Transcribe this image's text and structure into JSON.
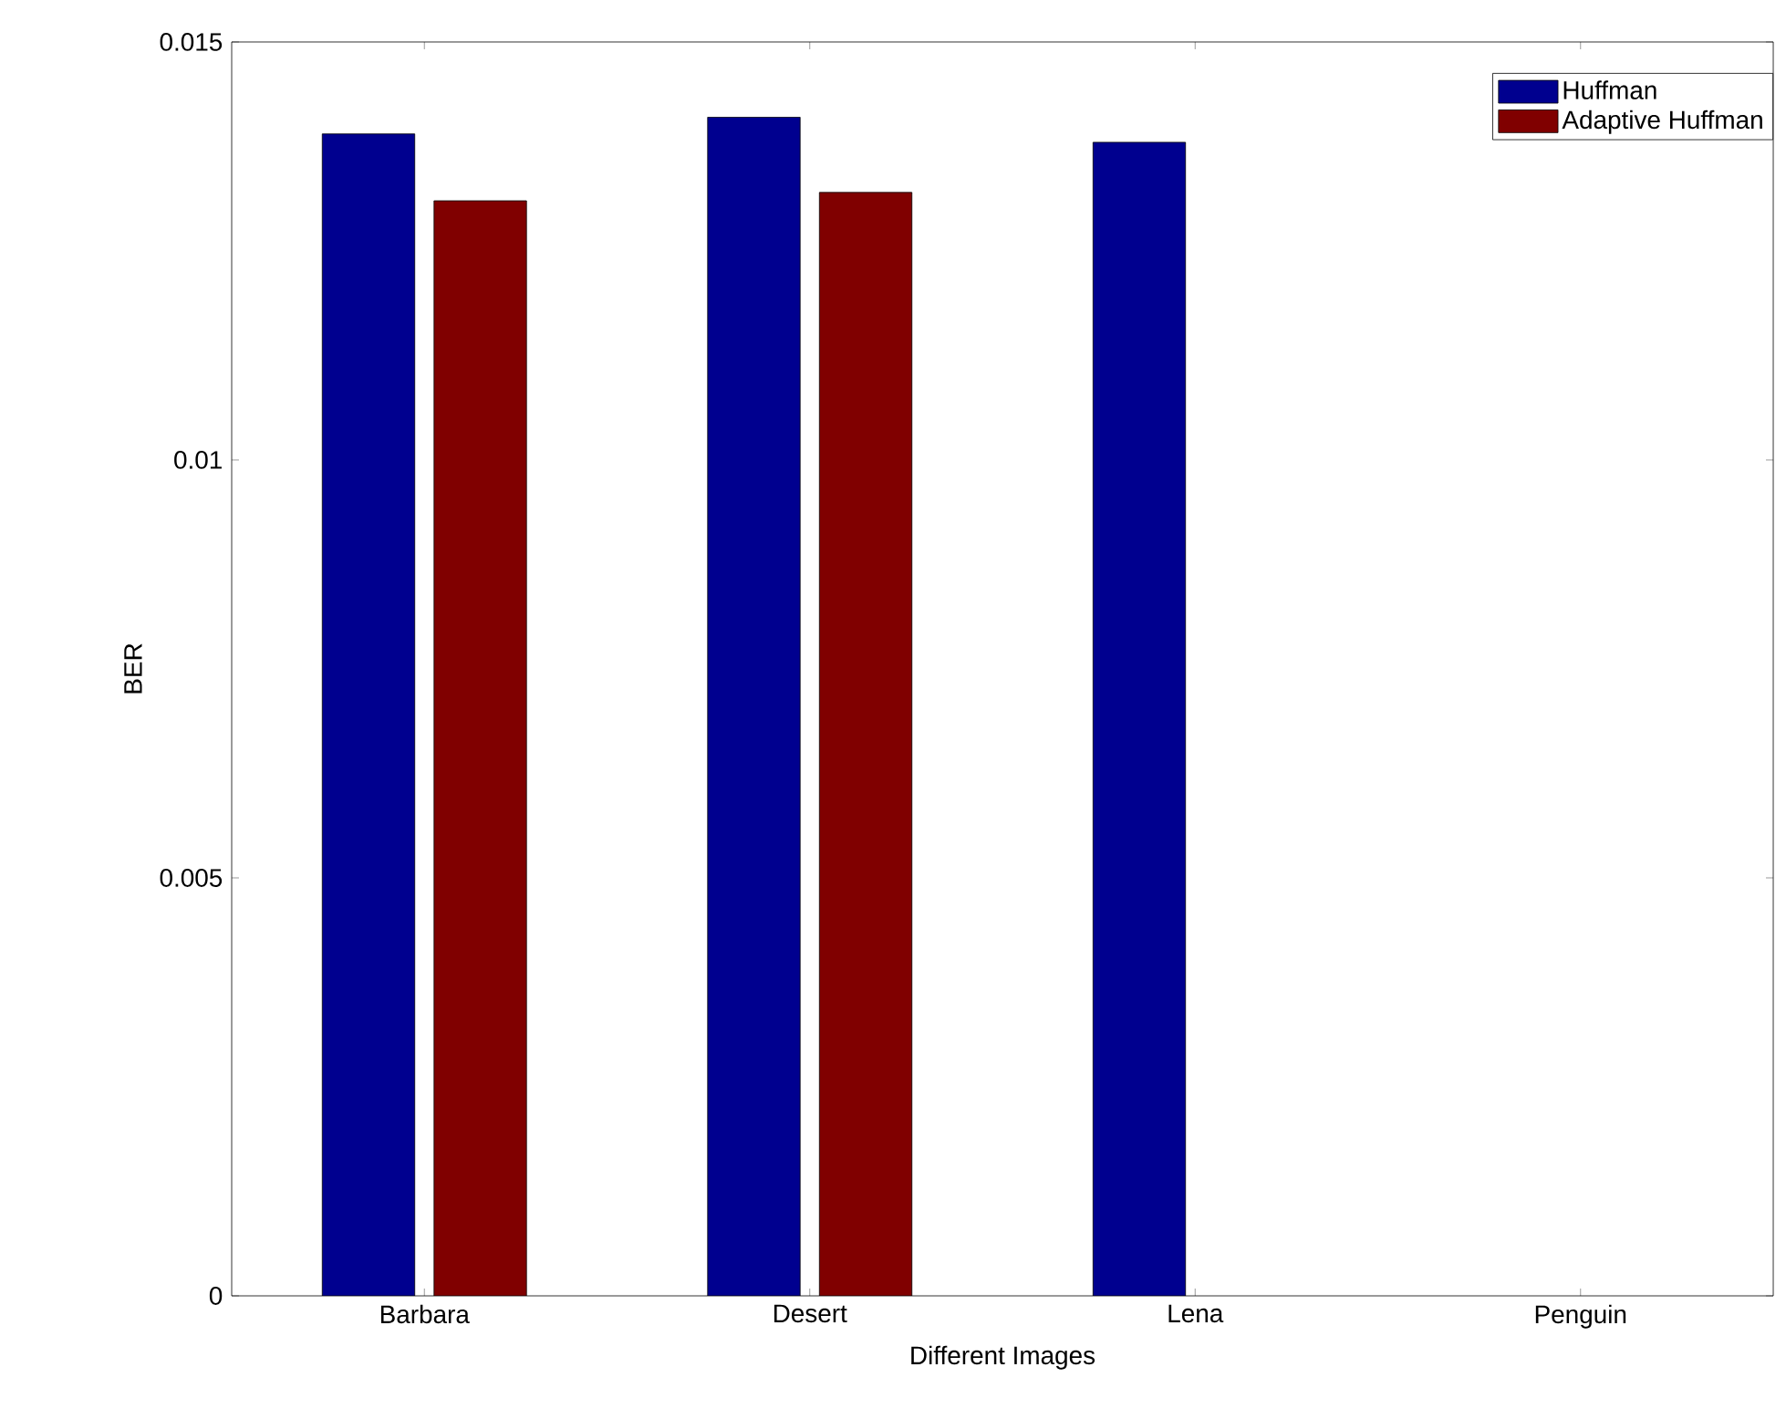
{
  "chart_data": {
    "type": "bar",
    "xlabel": "Different Images",
    "ylabel": "BER",
    "categories": [
      "Barbara",
      "Desert",
      "Lena",
      "Penguin"
    ],
    "series": [
      {
        "name": "Huffman",
        "color": "#00008f",
        "values": [
          0.0139,
          0.0141,
          0.0138,
          null
        ]
      },
      {
        "name": "Adaptive Huffman",
        "color": "#800000",
        "values": [
          0.0131,
          0.0132,
          null,
          null
        ]
      }
    ],
    "ylim": [
      0,
      0.015
    ],
    "yticks": [
      0,
      0.005,
      0.01,
      0.015
    ],
    "legend": "top right",
    "grid": false
  }
}
